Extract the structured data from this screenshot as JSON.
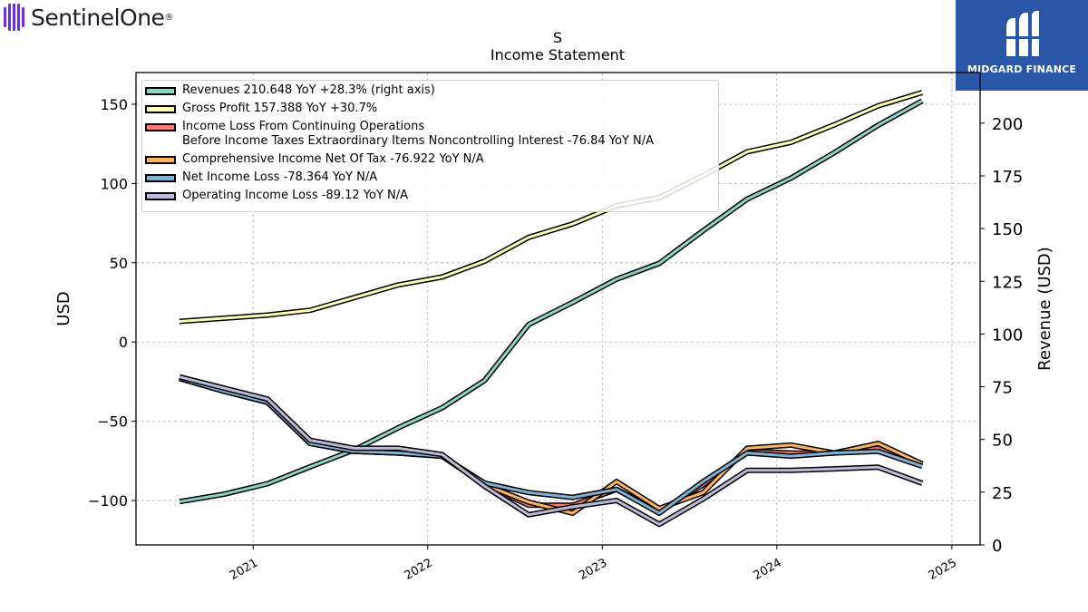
{
  "header": {
    "brand_left": "SentinelOne",
    "brand_left_mark": "®",
    "brand_right": "MIDGARD FINANCE",
    "title": "S",
    "subtitle": "Income Statement"
  },
  "colors": {
    "brand_purple": "#6b2ee8",
    "brand_blue": "#2a56a8"
  },
  "chart_data": {
    "type": "line",
    "title": "S",
    "subtitle": "Income Statement",
    "ylabel": "USD",
    "ylabel_right": "Revenue (USD)",
    "ylim": [
      -128,
      170
    ],
    "ylim_right": [
      0,
      224
    ],
    "yticks": [
      150,
      100,
      50,
      0,
      -50,
      -100
    ],
    "yticks_right": [
      200,
      175,
      150,
      125,
      100,
      75,
      50,
      25,
      0
    ],
    "ytick_labels": [
      "150",
      "100",
      "50",
      "0",
      "−50",
      "−100"
    ],
    "yticks_right_labels": [
      "200",
      "175",
      "150",
      "125",
      "100",
      "75",
      "50",
      "25",
      "0"
    ],
    "xlim": [
      "2020-05-01",
      "2025-03-01"
    ],
    "xticks": [
      "2021-01-01",
      "2022-01-01",
      "2023-01-01",
      "2024-01-01",
      "2025-01-01"
    ],
    "xtick_labels": [
      "2021",
      "2022",
      "2023",
      "2024",
      "2025"
    ],
    "grid": true,
    "legend_position": "upper-left",
    "x": [
      "2020-07-31",
      "2020-10-31",
      "2021-01-31",
      "2021-04-30",
      "2021-07-31",
      "2021-10-31",
      "2022-01-31",
      "2022-04-30",
      "2022-07-31",
      "2022-10-31",
      "2023-01-31",
      "2023-04-30",
      "2023-07-31",
      "2023-10-31",
      "2024-01-31",
      "2024-04-30",
      "2024-07-31",
      "2024-10-31"
    ],
    "series": [
      {
        "name": "Revenues  210.648 YoY +28.3% (right axis)",
        "axis": "right",
        "color": "#8dd3c7",
        "values": [
          20.5,
          24.0,
          29.0,
          37.0,
          45.0,
          55.5,
          65.0,
          78.0,
          104.5,
          115.0,
          126.0,
          133.5,
          149.0,
          164.0,
          174.0,
          186.0,
          199.0,
          210.6
        ]
      },
      {
        "name": "Gross Profit  157.388 YoY +30.7%",
        "axis": "left",
        "color": "#ffffb3",
        "values": [
          13.0,
          15.0,
          17.0,
          20.0,
          28.0,
          36.0,
          41.0,
          51.0,
          66.0,
          74.5,
          86.0,
          91.0,
          105.0,
          120.0,
          126.0,
          137.0,
          149.0,
          157.4
        ]
      },
      {
        "name": "Income Loss From Continuing Operations\nBefore Income Taxes Extraordinary Items Noncontrolling Interest  -76.84 YoY N/A",
        "axis": "left",
        "color": "#fb8072",
        "values": [
          -23.0,
          -31.0,
          -38.0,
          -64.0,
          -69.0,
          -70.0,
          -72.0,
          -90.0,
          -103.0,
          -103.0,
          -93.0,
          -107.0,
          -90.0,
          -69.0,
          -70.0,
          -70.0,
          -67.0,
          -76.8
        ]
      },
      {
        "name": "Comprehensive Income Net Of Tax  -76.922 YoY N/A",
        "axis": "left",
        "color": "#fdb462",
        "values": [
          -23.0,
          -31.0,
          -38.0,
          -64.0,
          -69.0,
          -70.0,
          -72.0,
          -90.0,
          -101.0,
          -108.0,
          -88.0,
          -105.0,
          -95.0,
          -67.0,
          -65.0,
          -70.0,
          -64.0,
          -76.9
        ]
      },
      {
        "name": "Net Income Loss  -78.364 YoY N/A",
        "axis": "left",
        "color": "#80b1d3",
        "values": [
          -23.0,
          -31.0,
          -38.0,
          -64.0,
          -69.0,
          -70.0,
          -72.0,
          -89.0,
          -95.0,
          -98.0,
          -93.0,
          -108.0,
          -88.0,
          -70.0,
          -72.0,
          -70.0,
          -69.0,
          -78.4
        ]
      },
      {
        "name": "Operating Income Loss  -89.12 YoY N/A",
        "axis": "left",
        "color": "#bebada",
        "values": [
          -22.0,
          -29.0,
          -36.0,
          -62.0,
          -67.0,
          -67.0,
          -71.0,
          -91.0,
          -109.0,
          -104.0,
          -100.0,
          -115.0,
          -99.0,
          -81.0,
          -81.0,
          -80.0,
          -79.0,
          -89.1
        ]
      }
    ]
  }
}
